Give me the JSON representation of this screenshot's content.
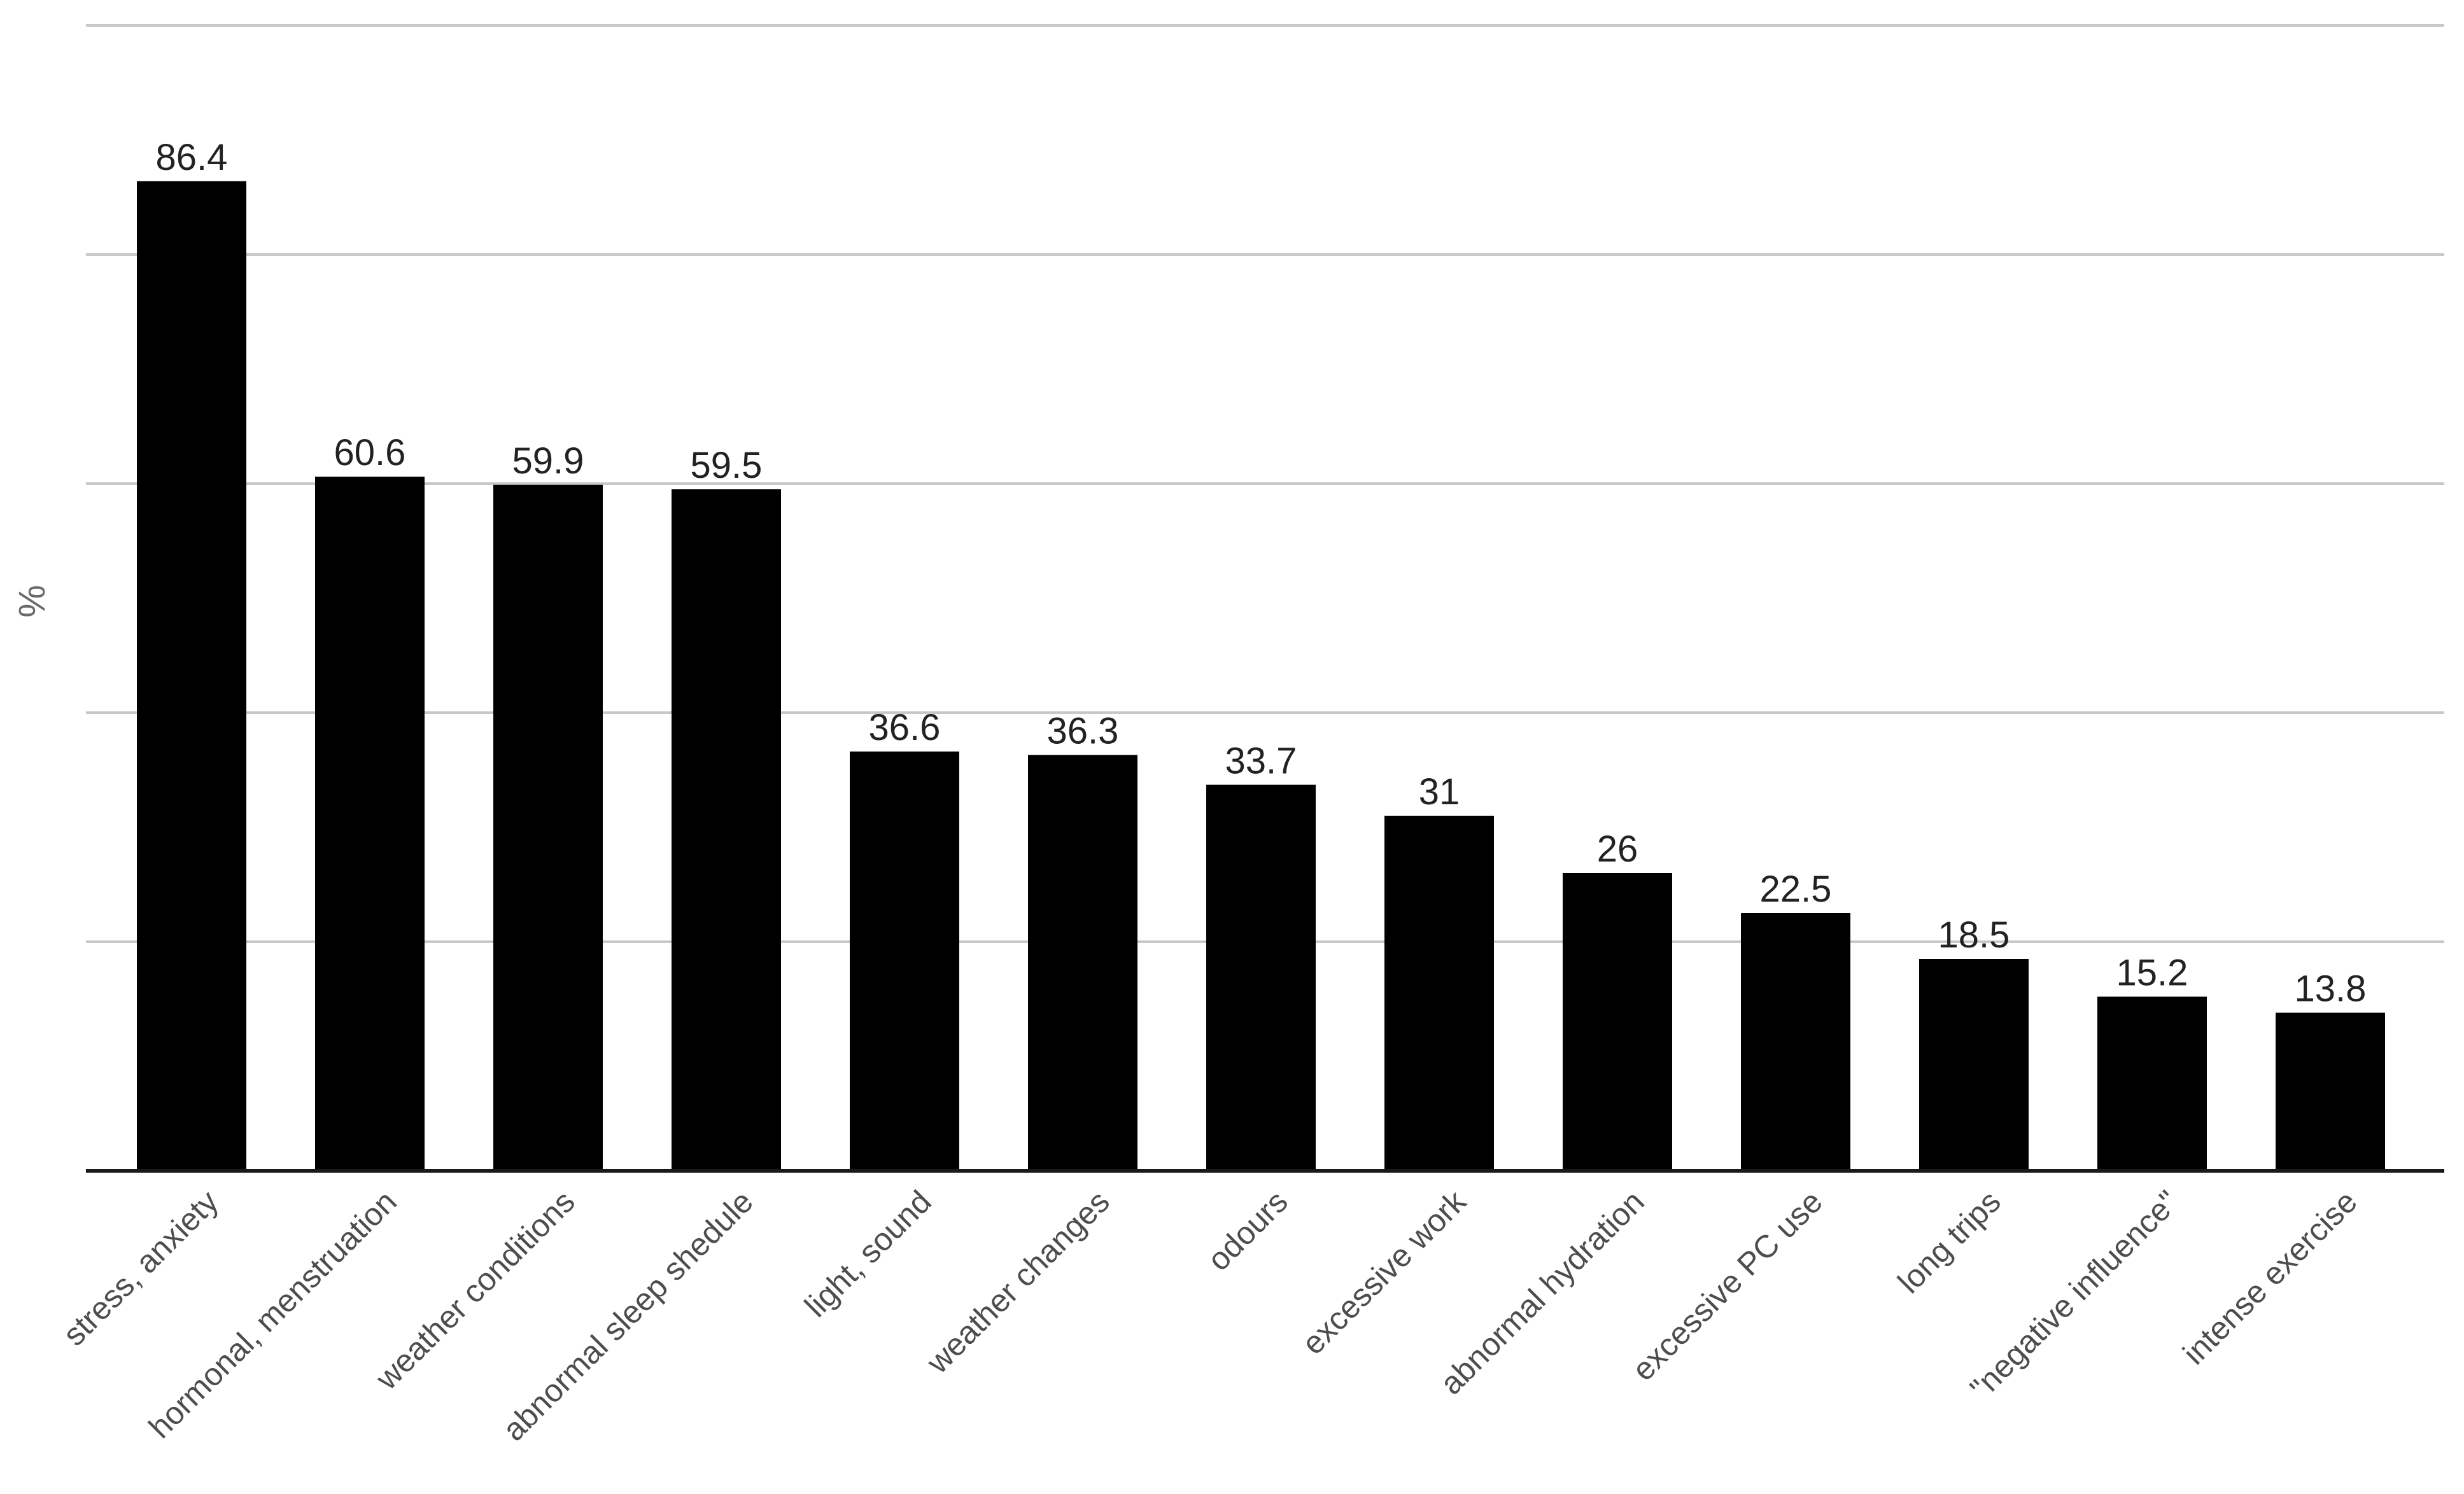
{
  "chart_data": {
    "type": "bar",
    "title": "",
    "xlabel": "",
    "ylabel": "%",
    "ylim": [
      0,
      100
    ],
    "grid": true,
    "legend": "none",
    "bar_color": "#000000",
    "gridline_color": "#c8c8c8",
    "categories": [
      "stress, anxiety",
      "hormonal, menstruation",
      "weather conditions",
      "abnormal sleep shedule",
      "light, sound",
      "weather changes",
      "odours",
      "excessive work",
      "abnormal hydration",
      "excessive PC use",
      "long trips",
      "\"negative influence\"",
      "intense exercise"
    ],
    "values": [
      86.4,
      60.6,
      59.9,
      59.5,
      36.6,
      36.3,
      33.7,
      31,
      26,
      22.5,
      18.5,
      15.2,
      13.8
    ],
    "data_labels": [
      "86.4",
      "60.6",
      "59.9",
      "59.5",
      "36.6",
      "36.3",
      "33.7",
      "31",
      "26",
      "22.5",
      "18.5",
      "15.2",
      "13.8"
    ],
    "gridline_values": [
      20,
      40,
      60,
      80,
      100
    ]
  }
}
